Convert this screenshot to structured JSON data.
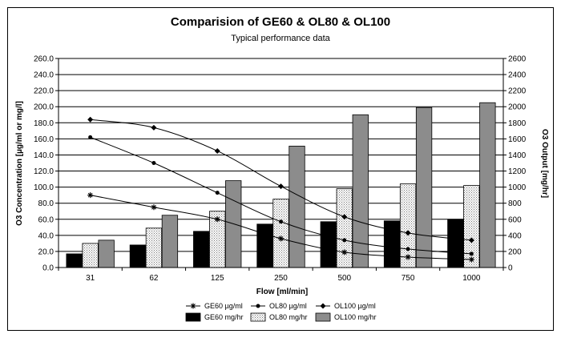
{
  "chart_data": {
    "type": "bar",
    "title": "Comparision of GE60 & OL80 & OL100",
    "subtitle": "Typical performance data",
    "xlabel": "Flow [ml/min]",
    "ylabel": "O3 Concentration [µg/ml or mg/l]",
    "y2label": "O3 Output [mg/hr]",
    "categories": [
      "31",
      "62",
      "125",
      "250",
      "500",
      "750",
      "1000"
    ],
    "ylim": [
      0,
      260
    ],
    "y2lim": [
      0,
      2600
    ],
    "y_ticks": [
      "0.0",
      "20.0",
      "40.0",
      "60.0",
      "80.0",
      "100.0",
      "120.0",
      "140.0",
      "160.0",
      "180.0",
      "200.0",
      "220.0",
      "240.0",
      "260.0"
    ],
    "y2_ticks": [
      "0",
      "200",
      "400",
      "600",
      "800",
      "1000",
      "1200",
      "1400",
      "1600",
      "1800",
      "2000",
      "2200",
      "2400",
      "2600"
    ],
    "grid": true,
    "legend_position": "bottom",
    "bar_series": [
      {
        "name": "GE60 mg/hr",
        "axis": "right",
        "fill": "solid",
        "color": "#000000",
        "values": [
          170,
          280,
          450,
          540,
          570,
          580,
          600
        ]
      },
      {
        "name": "OL80 mg/hr",
        "axis": "right",
        "fill": "dotted",
        "color": "#e0e0e0",
        "values": [
          300,
          490,
          700,
          850,
          980,
          1040,
          1020
        ]
      },
      {
        "name": "OL100 mg/hr",
        "axis": "right",
        "fill": "grey",
        "color": "#8c8c8c",
        "values": [
          340,
          650,
          1080,
          1510,
          1900,
          1990,
          2050
        ]
      }
    ],
    "line_series": [
      {
        "name": "GE60 µg/ml",
        "axis": "left",
        "marker": "star",
        "values": [
          90,
          75,
          60,
          36,
          19,
          13,
          10
        ]
      },
      {
        "name": "OL80 µg/ml",
        "axis": "left",
        "marker": "dot",
        "values": [
          162,
          130,
          93,
          57,
          34,
          23,
          17
        ]
      },
      {
        "name": "OL100 µg/ml",
        "axis": "left",
        "marker": "diamond",
        "values": [
          184,
          174,
          145,
          101,
          63,
          43,
          34
        ]
      }
    ],
    "legend_order": [
      "GE60 µg/ml",
      "OL80 µg/ml",
      "OL100 µg/ml",
      "GE60 mg/hr",
      "OL80 mg/hr",
      "OL100 mg/hr"
    ]
  }
}
